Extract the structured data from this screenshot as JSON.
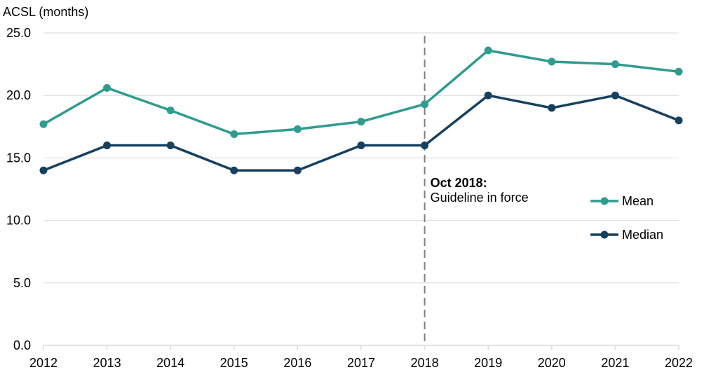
{
  "chart_data": {
    "type": "line",
    "title": "",
    "ylabel": "ACSL (months)",
    "xlabel": "",
    "x": [
      "2012",
      "2013",
      "2014",
      "2015",
      "2016",
      "2017",
      "2018",
      "2019",
      "2020",
      "2021",
      "2022"
    ],
    "ylim": [
      0,
      25
    ],
    "yticks": [
      "0.0",
      "5.0",
      "10.0",
      "15.0",
      "20.0",
      "25.0"
    ],
    "ytick_values": [
      0,
      5,
      10,
      15,
      20,
      25
    ],
    "grid": "horizontal",
    "legend_position": "right",
    "series": [
      {
        "name": "Mean",
        "color": "#2e9c8f",
        "values": [
          17.7,
          20.6,
          18.8,
          16.9,
          17.3,
          17.9,
          19.3,
          23.6,
          22.7,
          22.5,
          21.9
        ]
      },
      {
        "name": "Median",
        "color": "#17405f",
        "values": [
          14,
          16,
          16,
          14,
          14,
          16,
          16,
          20,
          19,
          20,
          18
        ]
      }
    ],
    "annotation": {
      "x": "2018",
      "title": "Oct 2018:",
      "text": "Guideline in force",
      "line_style": "dashed",
      "line_color": "#7f7f7f"
    }
  }
}
